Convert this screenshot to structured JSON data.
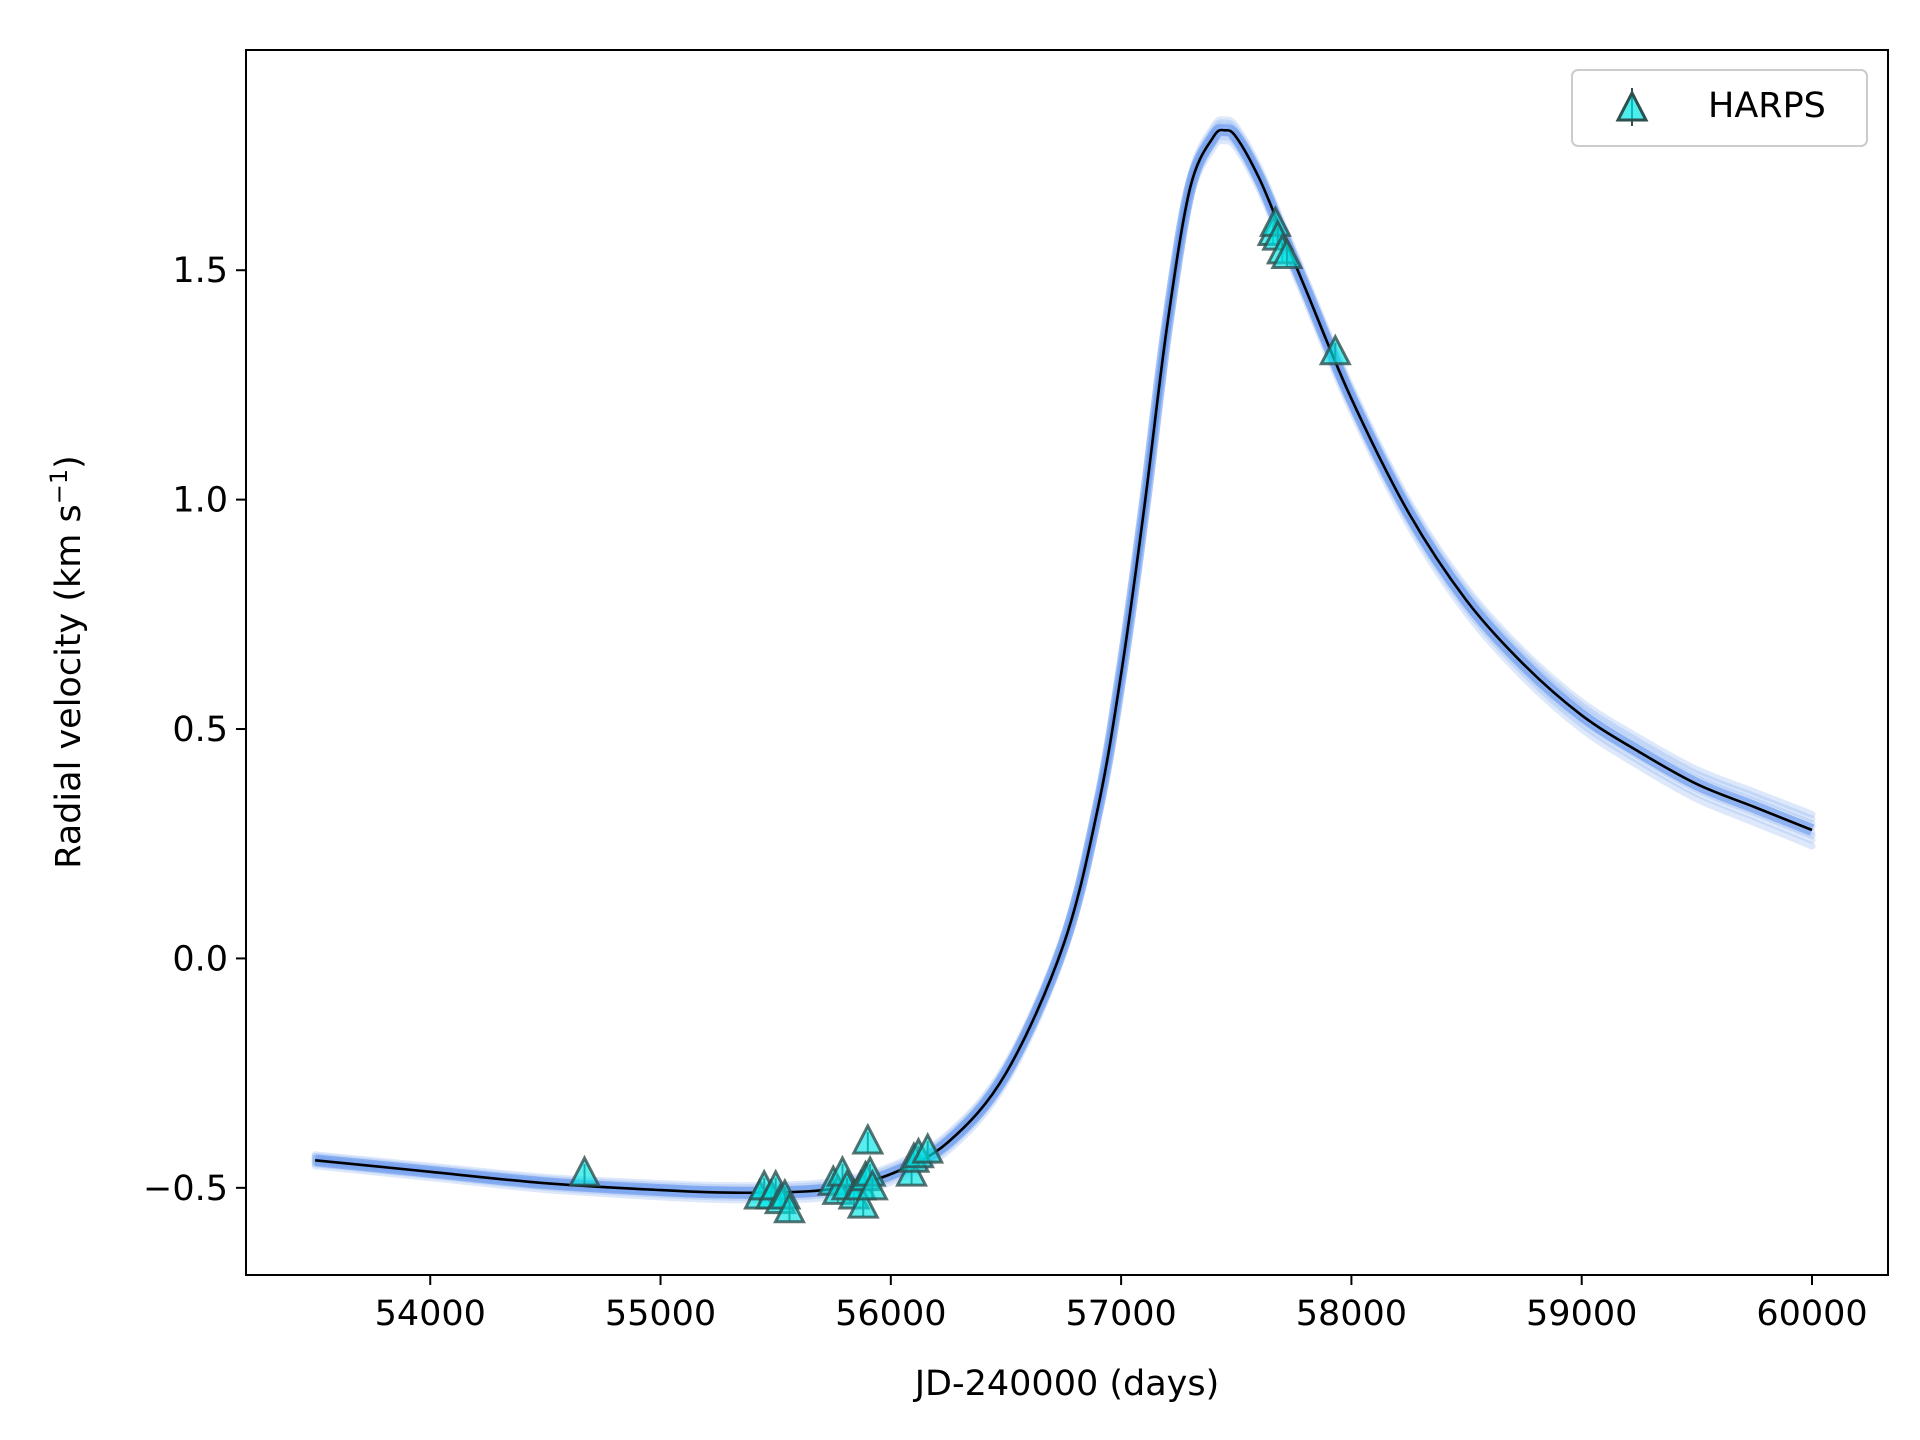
{
  "chart_data": {
    "type": "scatter",
    "title": "",
    "xlabel": "JD-240000 (days)",
    "ylabel": "Radial velocity (km s",
    "ylabel_sup": "−1",
    "ylabel_close": ")",
    "xlim": [
      53200,
      60330
    ],
    "ylim": [
      -0.69,
      1.98
    ],
    "x_ticks": [
      54000,
      55000,
      56000,
      57000,
      58000,
      59000,
      60000
    ],
    "x_tick_labels": [
      "54000",
      "55000",
      "56000",
      "57000",
      "58000",
      "59000",
      "60000"
    ],
    "y_ticks": [
      -0.5,
      0.0,
      0.5,
      1.0,
      1.5
    ],
    "y_tick_labels": [
      "−0.5",
      "0.0",
      "0.5",
      "1.0",
      "1.5"
    ],
    "grid": false,
    "legend_position": "top-right",
    "colors": {
      "model": "#000000",
      "samples": "#6495ed",
      "marker_fill": "#00e5e5",
      "marker_edge": "#2f4f4f"
    },
    "model_curve": {
      "x": [
        53500,
        54000,
        54500,
        55000,
        55250,
        55500,
        55750,
        56000,
        56250,
        56500,
        56750,
        56900,
        57000,
        57100,
        57200,
        57300,
        57400,
        57450,
        57500,
        57600,
        57700,
        57800,
        58000,
        58250,
        58500,
        58750,
        59000,
        59250,
        59500,
        59750,
        60000
      ],
      "y": [
        -0.44,
        -0.465,
        -0.49,
        -0.505,
        -0.51,
        -0.51,
        -0.502,
        -0.47,
        -0.4,
        -0.25,
        0.03,
        0.33,
        0.62,
        0.98,
        1.38,
        1.68,
        1.79,
        1.805,
        1.79,
        1.7,
        1.58,
        1.46,
        1.22,
        0.97,
        0.78,
        0.64,
        0.53,
        0.45,
        0.38,
        0.33,
        0.28
      ]
    },
    "series": [
      {
        "name": "HARPS",
        "x": [
          54670,
          55430,
          55450,
          55480,
          55500,
          55520,
          55540,
          55560,
          55750,
          55770,
          55790,
          55810,
          55840,
          55870,
          55880,
          55890,
          55900,
          55910,
          55920,
          56090,
          56100,
          56120,
          56160,
          57660,
          57670,
          57680,
          57700,
          57720,
          57930
        ],
        "y": [
          -0.47,
          -0.52,
          -0.5,
          -0.52,
          -0.5,
          -0.53,
          -0.52,
          -0.55,
          -0.49,
          -0.51,
          -0.47,
          -0.5,
          -0.52,
          -0.5,
          -0.54,
          -0.48,
          -0.4,
          -0.47,
          -0.5,
          -0.47,
          -0.44,
          -0.43,
          -0.42,
          1.58,
          1.6,
          1.57,
          1.54,
          1.53,
          1.32
        ]
      }
    ]
  }
}
